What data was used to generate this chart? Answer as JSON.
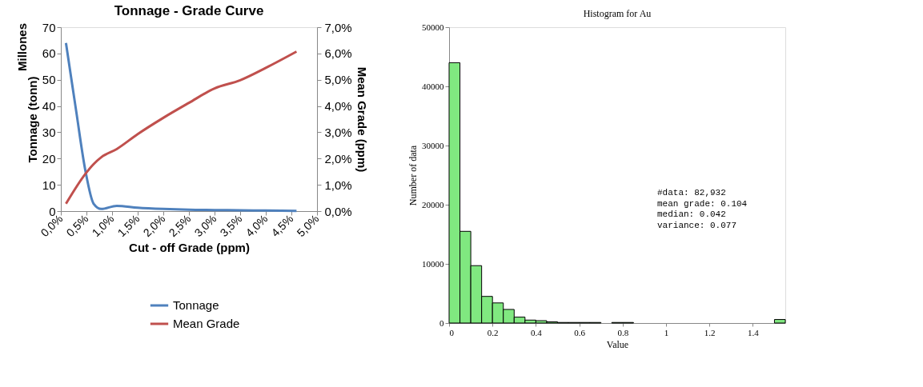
{
  "chart_data": [
    {
      "type": "line",
      "title": "Tonnage - Grade Curve",
      "xlabel": "Cut - off Grade (ppm)",
      "ylabel": "Tonnage (tonn)",
      "y2label": "Mean Grade (ppm)",
      "annotations": [
        "Millones"
      ],
      "xlim": [
        0,
        5
      ],
      "xticks": [
        {
          "value": 0,
          "label": "0,0%"
        },
        {
          "value": 0.5,
          "label": "0,5%"
        },
        {
          "value": 1,
          "label": "1,0%"
        },
        {
          "value": 1.5,
          "label": "1,5%"
        },
        {
          "value": 2,
          "label": "2,0%"
        },
        {
          "value": 2.5,
          "label": "2,5%"
        },
        {
          "value": 3,
          "label": "3,0%"
        },
        {
          "value": 3.5,
          "label": "3,5%"
        },
        {
          "value": 4,
          "label": "4,0%"
        },
        {
          "value": 4.5,
          "label": "4,5%"
        },
        {
          "value": 5,
          "label": "5,0%"
        }
      ],
      "ylim": [
        0,
        70
      ],
      "yticks": [
        0,
        10,
        20,
        30,
        40,
        50,
        60,
        70
      ],
      "y2lim": [
        0,
        7
      ],
      "y2ticks": [
        {
          "value": 0,
          "label": "0,0%"
        },
        {
          "value": 1,
          "label": "1,0%"
        },
        {
          "value": 2,
          "label": "2,0%"
        },
        {
          "value": 3,
          "label": "3,0%"
        },
        {
          "value": 4,
          "label": "4,0%"
        },
        {
          "value": 5,
          "label": "5,0%"
        },
        {
          "value": 6,
          "label": "6,0%"
        },
        {
          "value": 7,
          "label": "7,0%"
        }
      ],
      "grid": false,
      "legend": "bottom",
      "series": [
        {
          "name": "Tonnage",
          "color": "#4f81bd",
          "x": [
            0.1,
            0.2,
            0.3,
            0.48,
            0.64,
            0.79,
            1.09,
            1.5,
            2.0,
            2.5,
            3.0,
            3.5,
            4.0,
            4.6
          ],
          "values": [
            64,
            51,
            38,
            15.3,
            2.8,
            0.8,
            2.0,
            1.3,
            0.8,
            0.5,
            0.4,
            0.3,
            0.2,
            0.1
          ]
        },
        {
          "name": "Mean Grade",
          "color": "#c0504d",
          "axis": "y2",
          "x": [
            0.1,
            0.48,
            0.64,
            0.79,
            1.09,
            1.5,
            2.0,
            2.5,
            3.0,
            3.5,
            4.0,
            4.6
          ],
          "values": [
            0.28,
            1.42,
            1.79,
            2.05,
            2.36,
            2.93,
            3.55,
            4.12,
            4.67,
            4.98,
            5.45,
            6.07
          ]
        }
      ]
    },
    {
      "type": "histogram",
      "title": "Histogram for Au",
      "xlabel": "Value",
      "ylabel": "Number of data",
      "color": "#80e880",
      "annotations": [
        "#data:        82,932",
        "mean grade:   0.104",
        "median:       0.042",
        "variance:     0.077"
      ],
      "bins": [
        0,
        0.05,
        0.1,
        0.15,
        0.2,
        0.25,
        0.3,
        0.35,
        0.4,
        0.45,
        0.5,
        0.55,
        0.6,
        0.65,
        0.7,
        0.75,
        0.8,
        0.85,
        0.9,
        0.95,
        1.0,
        1.05,
        1.1,
        1.15,
        1.2,
        1.25,
        1.3,
        1.35,
        1.4,
        1.45,
        1.5,
        1.55
      ],
      "values": [
        44000,
        15500,
        9700,
        4500,
        3400,
        2300,
        1000,
        500,
        400,
        200,
        100,
        100,
        100,
        100,
        0,
        100,
        100,
        0,
        0,
        0,
        0,
        0,
        0,
        0,
        0,
        0,
        0,
        0,
        0,
        0,
        600
      ],
      "xlim": [
        0,
        1.55
      ],
      "xticks": [
        0,
        0.2,
        0.4,
        0.6,
        0.8,
        1,
        1.2,
        1.4
      ],
      "ylim": [
        0,
        50000
      ],
      "yticks": [
        0,
        10000,
        20000,
        30000,
        40000,
        50000
      ],
      "grid": false
    }
  ]
}
